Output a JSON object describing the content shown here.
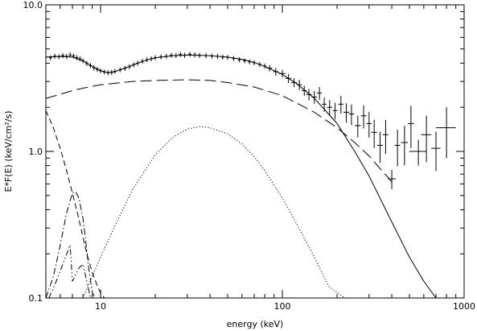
{
  "chart_data": {
    "type": "line",
    "title": "",
    "xlabel": "energy (keV)",
    "ylabel": "E*F(E) (keV/cm²/s)",
    "xscale": "log",
    "yscale": "log",
    "xlim": [
      5,
      1000
    ],
    "ylim": [
      0.1,
      10
    ],
    "grid": false,
    "x_ticks": [
      {
        "value": 10,
        "label": "10"
      },
      {
        "value": 100,
        "label": "100"
      },
      {
        "value": 1000,
        "label": "1000"
      }
    ],
    "y_ticks": [
      {
        "value": 0.1,
        "label": "0.1"
      },
      {
        "value": 1,
        "label": "1.0"
      },
      {
        "value": 10,
        "label": "10.0"
      }
    ],
    "series": [
      {
        "style": "solid",
        "x": [
          5,
          6,
          7,
          8,
          9,
          10,
          11,
          12,
          14,
          16,
          18,
          20,
          25,
          30,
          40,
          50,
          60,
          70,
          80,
          100,
          120,
          150,
          200,
          250,
          300,
          400,
          500,
          600,
          700,
          780
        ],
        "y": [
          4.4,
          4.45,
          4.4,
          4.15,
          3.8,
          3.55,
          3.45,
          3.5,
          3.75,
          4.0,
          4.2,
          4.35,
          4.5,
          4.55,
          4.5,
          4.4,
          4.25,
          4.05,
          3.8,
          3.35,
          2.9,
          2.3,
          1.55,
          1.0,
          0.68,
          0.33,
          0.19,
          0.13,
          0.1,
          0.08
        ]
      },
      {
        "style": "long-dash",
        "x": [
          5,
          6,
          7,
          8,
          10,
          15,
          20,
          30,
          40,
          50,
          70,
          100,
          150,
          200,
          250,
          300,
          400
        ],
        "y": [
          2.3,
          2.45,
          2.6,
          2.7,
          2.85,
          3.0,
          3.05,
          3.08,
          3.05,
          2.95,
          2.75,
          2.4,
          1.85,
          1.45,
          1.15,
          0.93,
          0.62
        ]
      },
      {
        "style": "dotted",
        "x": [
          8,
          10,
          12,
          15,
          20,
          25,
          30,
          35,
          40,
          50,
          60,
          70,
          80,
          100,
          120,
          150,
          180,
          220
        ],
        "y": [
          0.1,
          0.19,
          0.31,
          0.55,
          0.95,
          1.25,
          1.42,
          1.48,
          1.45,
          1.32,
          1.12,
          0.92,
          0.74,
          0.48,
          0.32,
          0.19,
          0.12,
          0.1
        ]
      },
      {
        "style": "dashed",
        "x": [
          5,
          5.5,
          6,
          6.5,
          7,
          7.5,
          8,
          8.5,
          9,
          9.5,
          10,
          10.5
        ],
        "y": [
          1.9,
          1.45,
          1.05,
          0.74,
          0.52,
          0.37,
          0.26,
          0.19,
          0.15,
          0.125,
          0.108,
          0.1
        ]
      },
      {
        "style": "dash-dot",
        "x": [
          5,
          5.5,
          6,
          6.5,
          7,
          7.3,
          7.6,
          8,
          8.3,
          8.6,
          9.0,
          9.3
        ],
        "y": [
          0.1,
          0.14,
          0.23,
          0.38,
          0.52,
          0.53,
          0.48,
          0.35,
          0.24,
          0.16,
          0.11,
          0.1
        ]
      },
      {
        "style": "dash-dot-dot",
        "x": [
          5.2,
          5.7,
          6.2,
          6.8,
          7.0,
          7.2,
          7.6,
          8.0,
          8.4,
          8.8
        ],
        "y": [
          0.1,
          0.13,
          0.17,
          0.23,
          0.13,
          0.14,
          0.16,
          0.17,
          0.13,
          0.1
        ]
      }
    ],
    "data_points_dense": {
      "x": [
        5.0,
        5.3,
        5.6,
        5.9,
        6.2,
        6.5,
        6.8,
        7.1,
        7.4,
        7.7,
        8.0,
        8.4,
        8.8,
        9.2,
        9.6,
        10.0,
        10.5,
        11.0,
        11.5,
        12.0,
        12.8,
        13.6,
        14.4,
        15.2,
        16.0,
        17.0,
        18.0,
        19.0,
        20.0,
        21.5,
        23.0,
        24.5,
        26.0,
        27.5,
        29.0,
        31.0,
        33.0,
        35.0,
        38.0,
        41.0,
        44.0,
        47.0,
        50.0,
        54.0,
        58.0,
        62.0,
        66.0,
        70.0,
        75.0,
        80.0
      ],
      "y": [
        4.4,
        4.35,
        4.46,
        4.42,
        4.5,
        4.45,
        4.55,
        4.48,
        4.36,
        4.28,
        4.15,
        3.98,
        3.85,
        3.72,
        3.62,
        3.55,
        3.48,
        3.44,
        3.46,
        3.52,
        3.6,
        3.68,
        3.78,
        3.9,
        4.0,
        4.12,
        4.22,
        4.28,
        4.36,
        4.42,
        4.46,
        4.52,
        4.5,
        4.58,
        4.52,
        4.6,
        4.55,
        4.52,
        4.5,
        4.47,
        4.45,
        4.4,
        4.38,
        4.3,
        4.22,
        4.15,
        4.08,
        4.02,
        3.92,
        3.82
      ]
    },
    "data_points_binned": {
      "x": [
        85,
        92,
        100,
        108,
        116,
        124,
        132,
        140,
        150,
        160,
        170,
        182,
        195,
        210,
        225,
        240,
        260,
        280,
        300,
        320,
        345,
        370,
        400,
        430,
        470,
        510,
        560,
        620,
        700,
        800
      ],
      "y": [
        3.7,
        3.5,
        3.4,
        3.15,
        2.95,
        2.85,
        2.6,
        2.45,
        2.35,
        2.5,
        2.1,
        2.0,
        1.9,
        2.1,
        1.85,
        1.8,
        1.5,
        1.75,
        1.55,
        1.35,
        1.1,
        1.3,
        0.65,
        1.1,
        1.15,
        1.55,
        1.0,
        1.3,
        1.05,
        1.45
      ],
      "xerr": [
        3,
        3,
        4,
        4,
        4,
        4,
        4,
        5,
        5,
        5,
        5,
        6,
        6,
        7,
        8,
        8,
        10,
        10,
        10,
        12,
        13,
        13,
        20,
        15,
        20,
        20,
        60,
        40,
        40,
        100
      ],
      "yerr_frac": [
        0.05,
        0.06,
        0.06,
        0.07,
        0.07,
        0.08,
        0.08,
        0.09,
        0.1,
        0.1,
        0.11,
        0.12,
        0.13,
        0.14,
        0.15,
        0.16,
        0.17,
        0.18,
        0.2,
        0.22,
        0.24,
        0.26,
        0.15,
        0.28,
        0.3,
        0.32,
        0.2,
        0.35,
        0.3,
        0.38
      ]
    }
  }
}
